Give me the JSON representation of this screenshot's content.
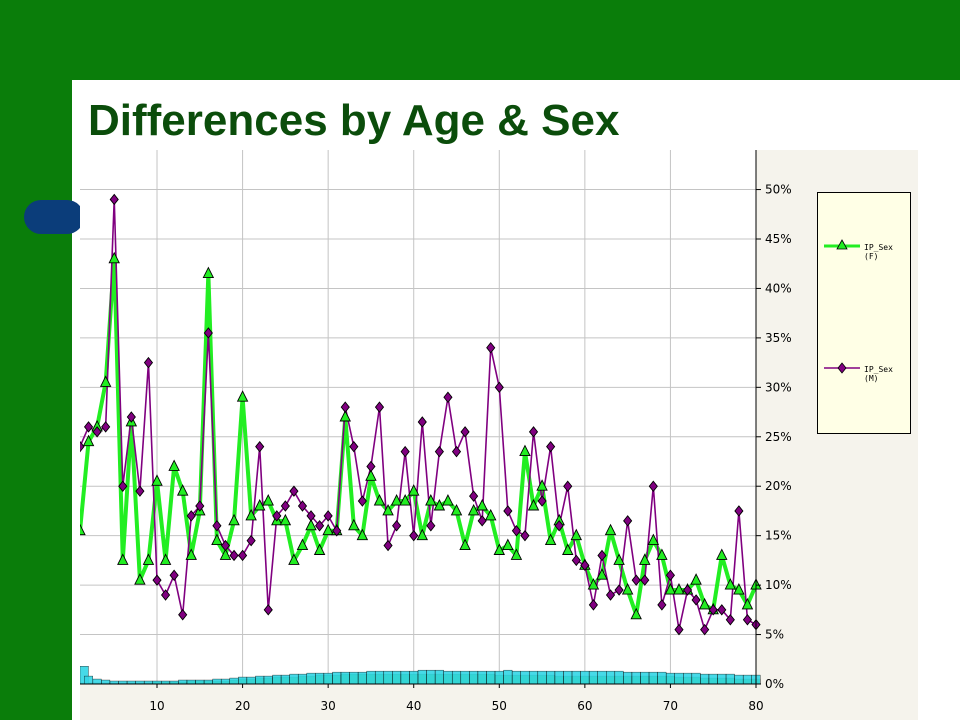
{
  "slide": {
    "title": "Differences by Age & Sex",
    "colors": {
      "theme_green": "#0a7d0a",
      "title_color": "#0b4d0b",
      "accent_pill": "#0b3d7a",
      "plot_bg": "#ffffff",
      "legend_bg": "#ffffe6"
    }
  },
  "chart_data": {
    "type": "line",
    "x_ticks": [
      10,
      20,
      30,
      40,
      50,
      60,
      70,
      80
    ],
    "y_ticks": [
      "0%",
      "5%",
      "10%",
      "15%",
      "20%",
      "25%",
      "30%",
      "35%",
      "40%",
      "45%",
      "50%"
    ],
    "xlim": [
      1,
      80
    ],
    "ylim": [
      0,
      54
    ],
    "grid": true,
    "y_axis_side": "right",
    "legend_placement": "right",
    "x": [
      1,
      2,
      3,
      4,
      5,
      6,
      7,
      8,
      9,
      10,
      11,
      12,
      13,
      14,
      15,
      16,
      17,
      18,
      19,
      20,
      21,
      22,
      23,
      24,
      25,
      26,
      27,
      28,
      29,
      30,
      31,
      32,
      33,
      34,
      35,
      36,
      37,
      38,
      39,
      40,
      41,
      42,
      43,
      44,
      45,
      46,
      47,
      48,
      49,
      50,
      51,
      52,
      53,
      54,
      55,
      56,
      57,
      58,
      59,
      60,
      61,
      62,
      63,
      64,
      65,
      66,
      67,
      68,
      69,
      70,
      71,
      72,
      73,
      74,
      75,
      76,
      77,
      78,
      79,
      80
    ],
    "series": [
      {
        "name": "IP_Sex\n(F)",
        "color": "#22ee22",
        "marker": "triangle",
        "values": [
          15.5,
          24.5,
          26,
          30.5,
          43,
          12.5,
          26.5,
          10.5,
          12.5,
          20.5,
          12.5,
          22,
          19.5,
          13,
          17.5,
          41.5,
          14.5,
          13,
          16.5,
          29,
          17,
          18,
          18.5,
          16.5,
          16.5,
          12.5,
          14,
          16,
          13.5,
          15.5,
          15.5,
          27,
          16,
          15,
          21,
          18.5,
          17.5,
          18.5,
          18.5,
          19.5,
          15,
          18.5,
          18,
          18.5,
          17.5,
          14,
          17.5,
          18,
          17,
          13.5,
          14,
          13,
          23.5,
          18,
          20,
          14.5,
          16.5,
          13.5,
          15,
          12,
          10,
          11,
          15.5,
          12.5,
          9.5,
          7,
          12.5,
          14.5,
          13,
          9.5,
          9.5,
          9.5,
          10.5,
          8,
          7.5,
          13,
          10,
          9.5,
          8,
          10
        ]
      },
      {
        "name": "IP_Sex\n(M)",
        "color": "#800080",
        "marker": "diamond",
        "values": [
          24,
          26,
          25.5,
          26,
          49,
          20,
          27,
          19.5,
          32.5,
          10.5,
          9,
          11,
          7,
          17,
          18,
          35.5,
          16,
          14,
          13,
          13,
          14.5,
          24,
          7.5,
          17,
          18,
          19.5,
          18,
          17,
          16,
          17,
          15.5,
          28,
          24,
          18.5,
          22,
          28,
          14,
          16,
          23.5,
          15,
          26.5,
          16,
          23.5,
          29,
          23.5,
          25.5,
          19,
          16.5,
          34,
          30,
          17.5,
          15.5,
          15,
          25.5,
          18.5,
          24,
          16,
          20,
          12.5,
          12,
          8,
          13,
          9,
          9.5,
          16.5,
          10.5,
          10.5,
          20,
          8,
          11,
          5.5,
          9.5,
          8.5,
          5.5,
          7.5,
          7.5,
          6.5,
          17.5,
          6.5,
          6
        ]
      }
    ],
    "bar_series": [
      {
        "color": "#33cc33",
        "values": [
          0.1,
          0.1,
          0.1,
          0.1,
          0.1,
          0.1,
          0.1,
          0.1,
          0.1,
          0.2,
          0.2,
          0.2,
          0.2,
          0.3,
          0.3,
          0.3,
          0.3,
          0.3,
          0.4,
          0.5,
          0.5,
          0.6,
          0.6,
          0.7,
          0.7,
          0.7,
          0.8,
          0.8,
          0.9,
          0.9,
          0.9,
          1,
          1,
          1,
          1,
          1,
          1,
          1,
          1,
          1,
          1,
          1,
          1,
          1,
          1,
          1,
          1,
          1,
          1,
          0.9,
          0.9,
          0.9,
          0.9,
          0.9,
          0.9,
          0.9,
          0.8,
          0.8,
          0.8,
          0.8,
          0.8,
          0.8,
          0.8,
          0.8,
          0.8,
          0.8,
          0.8,
          0.8,
          0.8,
          0.8,
          0.7,
          0.7,
          0.7,
          0.6,
          0.6,
          0.6,
          0.6,
          0.5,
          0.5,
          0.5
        ]
      },
      {
        "color": "#33d6e6",
        "values": [
          1.8,
          0.8,
          0.5,
          0.4,
          0.3,
          0.3,
          0.3,
          0.3,
          0.3,
          0.3,
          0.3,
          0.3,
          0.4,
          0.4,
          0.4,
          0.4,
          0.5,
          0.5,
          0.6,
          0.7,
          0.7,
          0.8,
          0.8,
          0.9,
          0.9,
          1,
          1,
          1.1,
          1.1,
          1.1,
          1.2,
          1.2,
          1.2,
          1.2,
          1.3,
          1.3,
          1.3,
          1.3,
          1.3,
          1.3,
          1.4,
          1.4,
          1.4,
          1.3,
          1.3,
          1.3,
          1.3,
          1.3,
          1.3,
          1.3,
          1.4,
          1.3,
          1.3,
          1.3,
          1.3,
          1.3,
          1.3,
          1.3,
          1.3,
          1.3,
          1.3,
          1.3,
          1.3,
          1.3,
          1.2,
          1.2,
          1.2,
          1.2,
          1.2,
          1.1,
          1.1,
          1.1,
          1.1,
          1,
          1,
          1,
          1,
          0.9,
          0.9,
          0.9
        ]
      }
    ]
  }
}
